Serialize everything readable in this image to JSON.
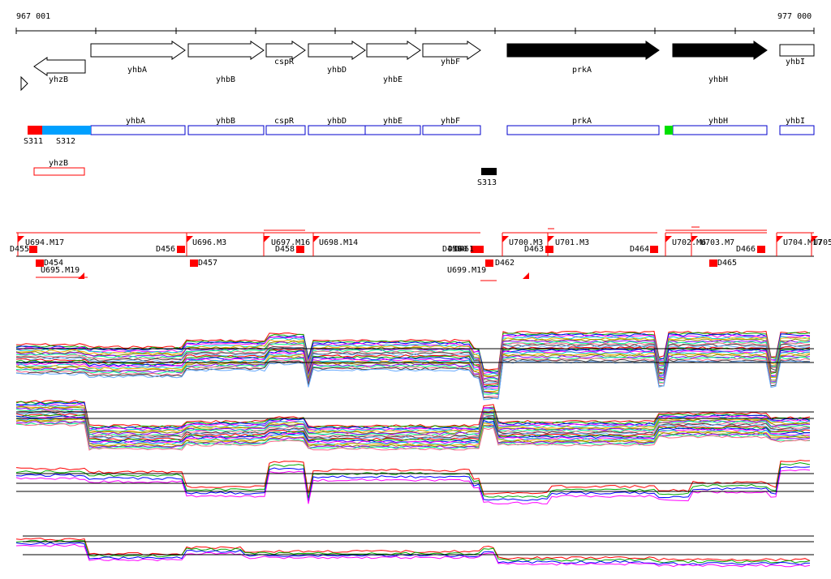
{
  "ruler": {
    "start_label": "967 001",
    "end_label": "977 000"
  },
  "genes": [
    {
      "name": "yhzB",
      "strand": "-",
      "fill": "#ffffff"
    },
    {
      "name": "yhbA",
      "strand": "+",
      "fill": "#ffffff"
    },
    {
      "name": "yhbB",
      "strand": "+",
      "fill": "#ffffff"
    },
    {
      "name": "cspR",
      "strand": "+",
      "fill": "#ffffff"
    },
    {
      "name": "yhbD",
      "strand": "+",
      "fill": "#ffffff"
    },
    {
      "name": "yhbE",
      "strand": "+",
      "fill": "#ffffff"
    },
    {
      "name": "yhbF",
      "strand": "+",
      "fill": "#ffffff"
    },
    {
      "name": "prkA",
      "strand": "+",
      "fill": "#000000"
    },
    {
      "name": "yhbH",
      "strand": "+",
      "fill": "#000000"
    },
    {
      "name": "yhbI",
      "strand": "+",
      "fill": "#ffffff"
    }
  ],
  "annotation_track": {
    "segments": [
      "yhbA",
      "yhbB",
      "cspR",
      "yhbD",
      "yhbE",
      "yhbF",
      "prkA",
      "yhbH",
      "yhbI"
    ],
    "colored_blocks": [
      {
        "label": "S311",
        "color": "#ff0000"
      },
      {
        "label": "S312",
        "color": "#00a0ff"
      },
      {
        "label": "",
        "color": "#00e000"
      }
    ],
    "extra_label": "yhzB",
    "s313_label": "S313"
  },
  "upshift_labels": [
    "U694.M17",
    "U695.M19",
    "U696.M3",
    "U697.M16",
    "U698.M14",
    "U699.M19",
    "U700.M3",
    "U701.M3",
    "U702.M6",
    "U703.M7",
    "U704.M17",
    "U705"
  ],
  "downshift_labels": [
    "D455",
    "D454",
    "D456",
    "D457",
    "D458",
    "D459",
    "D460",
    "D461",
    "D462",
    "D463",
    "D464",
    "D465",
    "D466"
  ],
  "colors": {
    "accent": "#ff0000",
    "outline": "#0000cc",
    "axis": "#000000"
  }
}
